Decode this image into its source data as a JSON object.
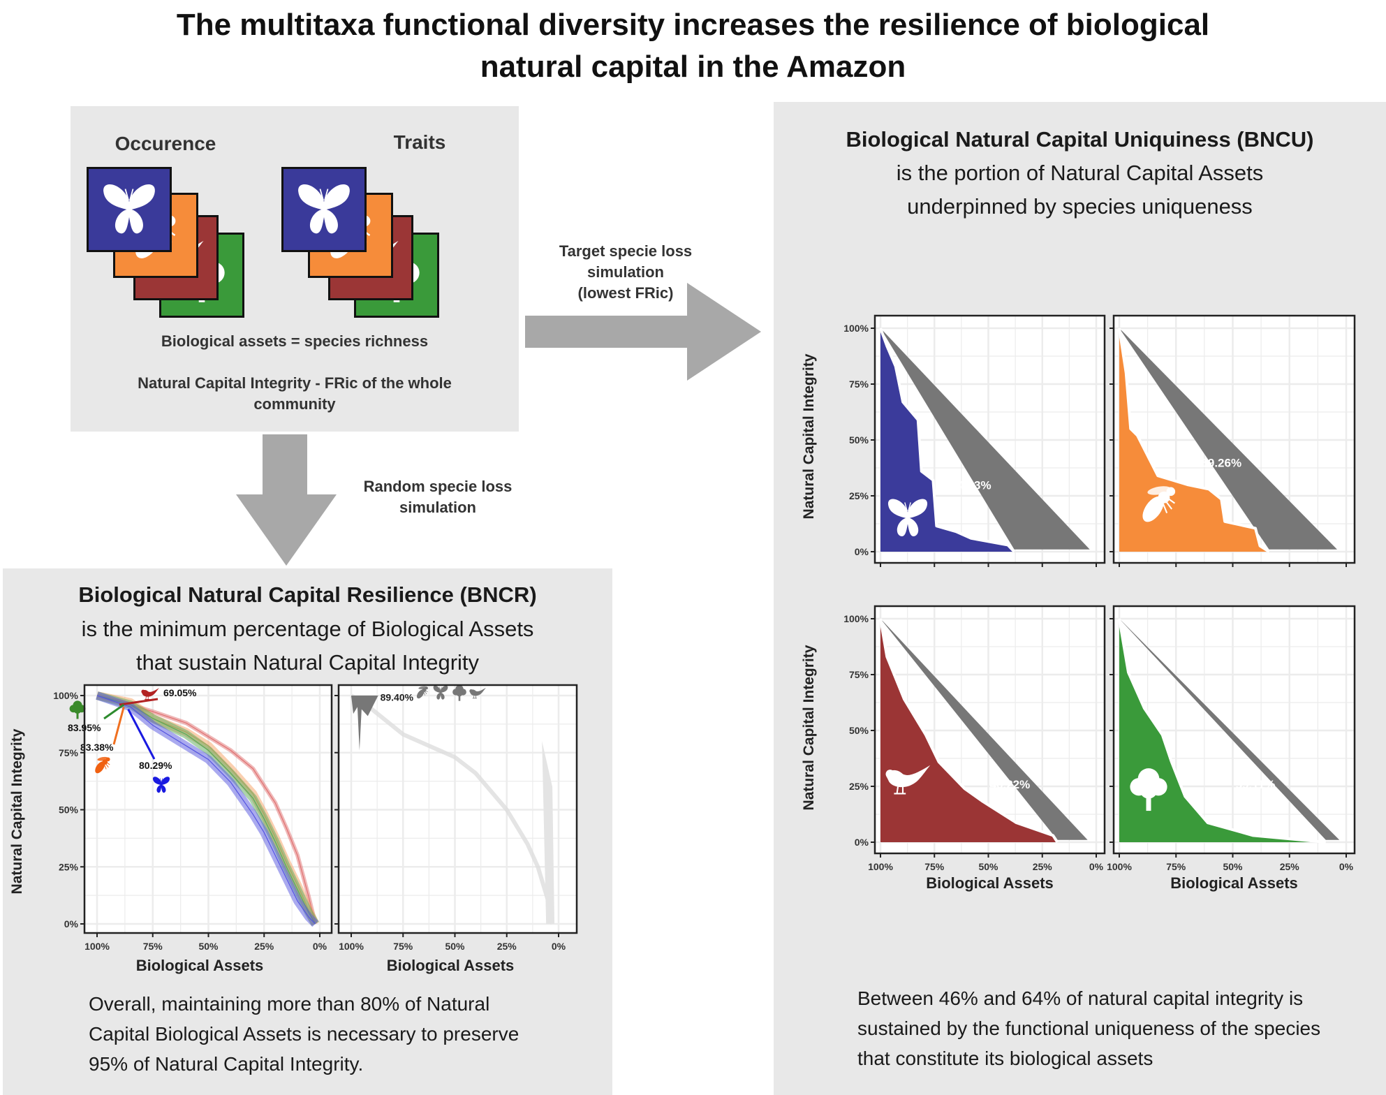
{
  "title": {
    "line1": "The multitaxa functional diversity increases the resilience of biological",
    "line2": "natural capital in the Amazon"
  },
  "inputs_panel": {
    "occurrence_label": "Occurence",
    "traits_label": "Traits",
    "assets_text": "Biological assets = species richness",
    "integrity_line1": "Natural Capital Integrity -  FRic of the whole",
    "integrity_line2": "community"
  },
  "arrows": {
    "target_line1": "Target specie loss",
    "target_line2": "simulation",
    "target_line3": "(lowest FRic)",
    "random_line1": "Random specie loss",
    "random_line2": "simulation"
  },
  "bncr": {
    "title": "Biological Natural Capital Resilience (BNCR)",
    "sub1": "is the minimum percentage of Biological Assets",
    "sub2": "that sustain Natural Capital Integrity",
    "conclusion1": "Overall, maintaining more than 80% of Natural",
    "conclusion2": "Capital Biological Assets is necessary to preserve",
    "conclusion3": "95% of Natural Capital Integrity."
  },
  "bncu": {
    "title": "Biological Natural Capital Uniquiness (BNCU)",
    "sub1": "is the portion of Natural Capital Assets",
    "sub2": "underpinned by species uniqueness",
    "conclusion1": "Between 46% and 64% of natural capital integrity is",
    "conclusion2": "sustained by the functional uniqueness of the species",
    "conclusion3": "that constitute its biological assets"
  },
  "colors": {
    "butterfly": "#3b3b9b",
    "bee": "#f68c3a",
    "bird": "#9b3535",
    "tree": "#3a9a3a",
    "gray": "#777777",
    "panel": "#e8e8e8"
  },
  "chart_data": [
    {
      "id": "bncr-random",
      "type": "line",
      "xlabel": "Biological Assets",
      "ylabel": "Natural Capital Integrity",
      "x_ticks": [
        "100%",
        "75%",
        "50%",
        "25%",
        "0%"
      ],
      "y_ticks": [
        "0%",
        "25%",
        "50%",
        "75%",
        "100%"
      ],
      "xlim": [
        100,
        0
      ],
      "ylim": [
        0,
        100
      ],
      "grid": true,
      "series": [
        {
          "name": "bird",
          "color": "#e07070",
          "label": "69.05%",
          "x": [
            100,
            85,
            75,
            60,
            50,
            40,
            30,
            20,
            15,
            10,
            5,
            2
          ],
          "y": [
            100,
            96,
            93,
            88,
            82,
            76,
            68,
            53,
            42,
            30,
            12,
            0
          ]
        },
        {
          "name": "bee",
          "color": "#f6a060",
          "label": "83.38%",
          "x": [
            100,
            85,
            75,
            60,
            50,
            40,
            30,
            25,
            20,
            15,
            10,
            5,
            2
          ],
          "y": [
            100,
            97,
            90,
            84,
            78,
            68,
            57,
            48,
            38,
            27,
            17,
            6,
            0
          ]
        },
        {
          "name": "tree",
          "color": "#5aaa5a",
          "label": "83.95%",
          "x": [
            100,
            85,
            75,
            60,
            50,
            40,
            30,
            25,
            20,
            15,
            10,
            5,
            2
          ],
          "y": [
            100,
            96,
            90,
            83,
            76,
            66,
            55,
            46,
            36,
            25,
            15,
            5,
            0
          ]
        },
        {
          "name": "butterfly",
          "color": "#5555e0",
          "label": "80.29%",
          "x": [
            100,
            85,
            75,
            60,
            50,
            40,
            30,
            25,
            20,
            15,
            10,
            5,
            2
          ],
          "y": [
            100,
            95,
            87,
            78,
            72,
            62,
            48,
            40,
            30,
            20,
            10,
            3,
            0
          ]
        }
      ]
    },
    {
      "id": "bncr-combined",
      "type": "line",
      "xlabel": "Biological Assets",
      "x_ticks": [
        "100%",
        "75%",
        "50%",
        "25%",
        "0%"
      ],
      "xlim": [
        100,
        0
      ],
      "ylim": [
        0,
        100
      ],
      "grid": true,
      "series": [
        {
          "name": "all-taxa",
          "color": "#888888",
          "label": "89.40%",
          "x": [
            100,
            90,
            75,
            60,
            50,
            40,
            25,
            15,
            10,
            5,
            3
          ],
          "y": [
            100,
            94,
            83,
            77,
            73,
            66,
            50,
            35,
            25,
            10,
            0
          ]
        }
      ]
    },
    {
      "id": "bncu-butterfly",
      "type": "area",
      "taxon": "butterfly",
      "label": "64.23%",
      "xlabel": "",
      "ylabel": "Natural Capital Integrity",
      "xlim": [
        100,
        0
      ],
      "ylim": [
        0,
        100
      ],
      "y_ticks": [
        "0%",
        "25%",
        "50%",
        "75%",
        "100%"
      ],
      "x": [
        100,
        97,
        93,
        89.6,
        82.6,
        81,
        75.6,
        74,
        65,
        58,
        41,
        38
      ],
      "y": [
        100,
        92,
        83,
        67,
        59,
        36,
        32,
        11.5,
        9,
        6,
        3,
        0
      ],
      "triangle_end": 3
    },
    {
      "id": "bncu-bee",
      "type": "area",
      "taxon": "bee",
      "label": "59.26%",
      "xlim": [
        100,
        0
      ],
      "ylim": [
        0,
        100
      ],
      "x": [
        100,
        97,
        95,
        92,
        88,
        83,
        70,
        60.5,
        55,
        53.5,
        40,
        38,
        34
      ],
      "y": [
        100,
        80,
        55,
        52,
        44,
        34,
        30,
        28,
        23.5,
        13.5,
        10.5,
        2.6,
        0
      ],
      "triangle_end": 4
    },
    {
      "id": "bncu-bird",
      "type": "area",
      "taxon": "bird",
      "label": "46.22%",
      "xlabel": "Biological Assets",
      "ylabel": "Natural Capital Integrity",
      "xlim": [
        100,
        0
      ],
      "ylim": [
        0,
        100
      ],
      "x_ticks": [
        "100%",
        "75%",
        "50%",
        "25%",
        "0%"
      ],
      "y_ticks": [
        "0%",
        "25%",
        "50%",
        "75%",
        "100%"
      ],
      "x": [
        100,
        97,
        89,
        79,
        73,
        61,
        53,
        37,
        20,
        18
      ],
      "y": [
        100,
        83,
        64,
        48,
        36,
        24,
        18.5,
        8.7,
        3,
        0
      ],
      "triangle_end": 4
    },
    {
      "id": "bncu-tree",
      "type": "area",
      "taxon": "tree",
      "label": "59.11%",
      "xlabel": "Biological Assets",
      "xlim": [
        100,
        0
      ],
      "ylim": [
        0,
        100
      ],
      "x_ticks": [
        "100%",
        "75%",
        "50%",
        "25%",
        "0%"
      ],
      "x": [
        100,
        96,
        89,
        81,
        77,
        71,
        61,
        41,
        9
      ],
      "y": [
        100,
        76,
        60,
        48,
        36,
        20.5,
        8.7,
        3,
        0
      ],
      "triangle_end": 3
    }
  ]
}
